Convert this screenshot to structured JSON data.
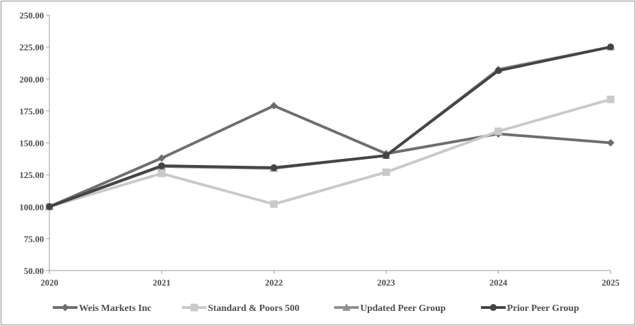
{
  "chart_data": {
    "type": "line",
    "title": "",
    "xlabel": "",
    "ylabel": "",
    "categories": [
      "2020",
      "2021",
      "2022",
      "2023",
      "2024",
      "2025"
    ],
    "ylim": [
      50,
      250
    ],
    "yticks": [
      "50.00",
      "75.00",
      "100.00",
      "125.00",
      "150.00",
      "175.00",
      "200.00",
      "225.00",
      "250.00"
    ],
    "ytick_values": [
      50,
      75,
      100,
      125,
      150,
      175,
      200,
      225,
      250
    ],
    "grid": false,
    "legend_position": "bottom",
    "series": [
      {
        "name": "Weis Markets Inc",
        "values": [
          100,
          138,
          179,
          141.5,
          157,
          150
        ],
        "color": "#6e6e6e",
        "marker": "diamond"
      },
      {
        "name": "Standard & Poors 500",
        "values": [
          100,
          126,
          102,
          127,
          159,
          184
        ],
        "color": "#c9c9c9",
        "marker": "square"
      },
      {
        "name": "Updated Peer Group",
        "values": [
          100,
          131.5,
          130,
          140,
          207.5,
          225
        ],
        "color": "#8f8f8f",
        "marker": "triangle"
      },
      {
        "name": "Prior Peer Group",
        "values": [
          100,
          132,
          130.5,
          140,
          206.5,
          225
        ],
        "color": "#444444",
        "marker": "circle"
      }
    ]
  }
}
